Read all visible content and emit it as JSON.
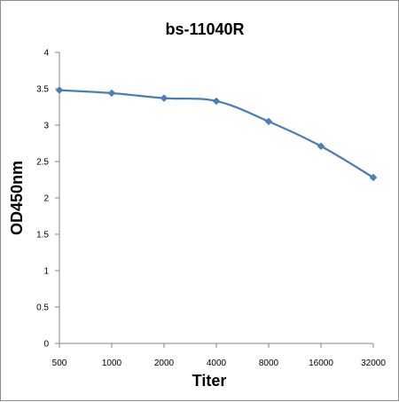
{
  "chart_data": {
    "type": "line",
    "title": "bs-11040R",
    "xlabel": "Titer",
    "ylabel": "OD450nm",
    "categories": [
      "500",
      "1000",
      "2000",
      "4000",
      "8000",
      "16000",
      "32000"
    ],
    "series": [
      {
        "values": [
          3.48,
          3.44,
          3.37,
          3.33,
          3.05,
          2.71,
          2.28
        ]
      }
    ],
    "ylim": [
      0,
      4
    ],
    "yticks": [
      "0",
      "0.5",
      "1",
      "1.5",
      "2",
      "2.5",
      "3",
      "3.5",
      "4"
    ],
    "grid": false,
    "legend": "none",
    "colors": {
      "series": "#4a7ebb",
      "axis": "#868686"
    }
  }
}
